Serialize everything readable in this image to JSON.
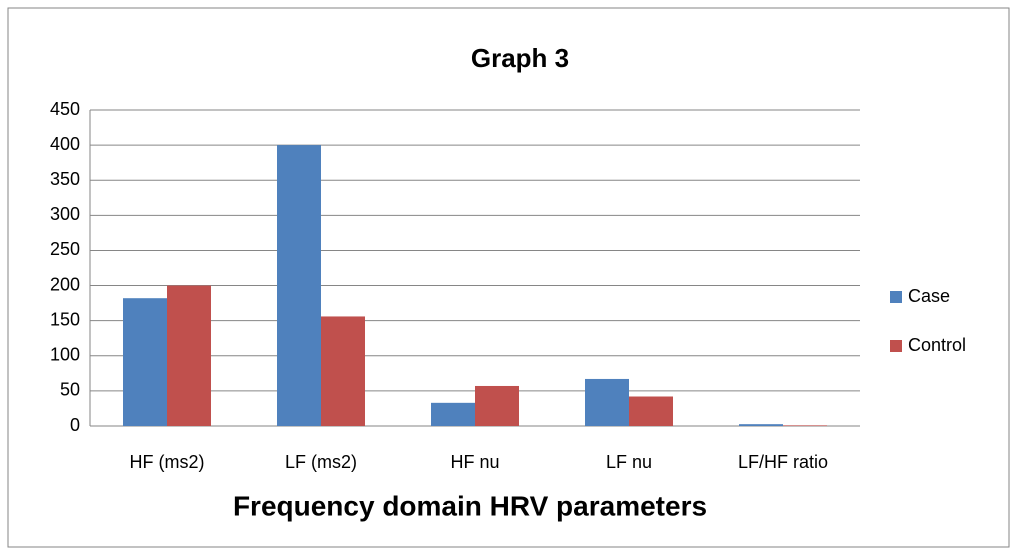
{
  "chart_data": {
    "type": "bar",
    "title": "Graph 3",
    "x_label": "Frequency domain HRV parameters",
    "categories": [
      "HF (ms2)",
      "LF (ms2)",
      "HF nu",
      "LF nu",
      "LF/HF ratio"
    ],
    "series": [
      {
        "name": "Case",
        "color": "#4f81bd",
        "values": [
          182,
          400,
          33,
          67,
          2.6
        ]
      },
      {
        "name": "Control",
        "color": "#c0504d",
        "values": [
          200,
          156,
          57,
          42,
          0.9
        ]
      }
    ],
    "ylim": [
      0,
      450
    ],
    "yticks": [
      0,
      50,
      100,
      150,
      200,
      250,
      300,
      350,
      400,
      450
    ],
    "grid": true,
    "legend": "right"
  }
}
